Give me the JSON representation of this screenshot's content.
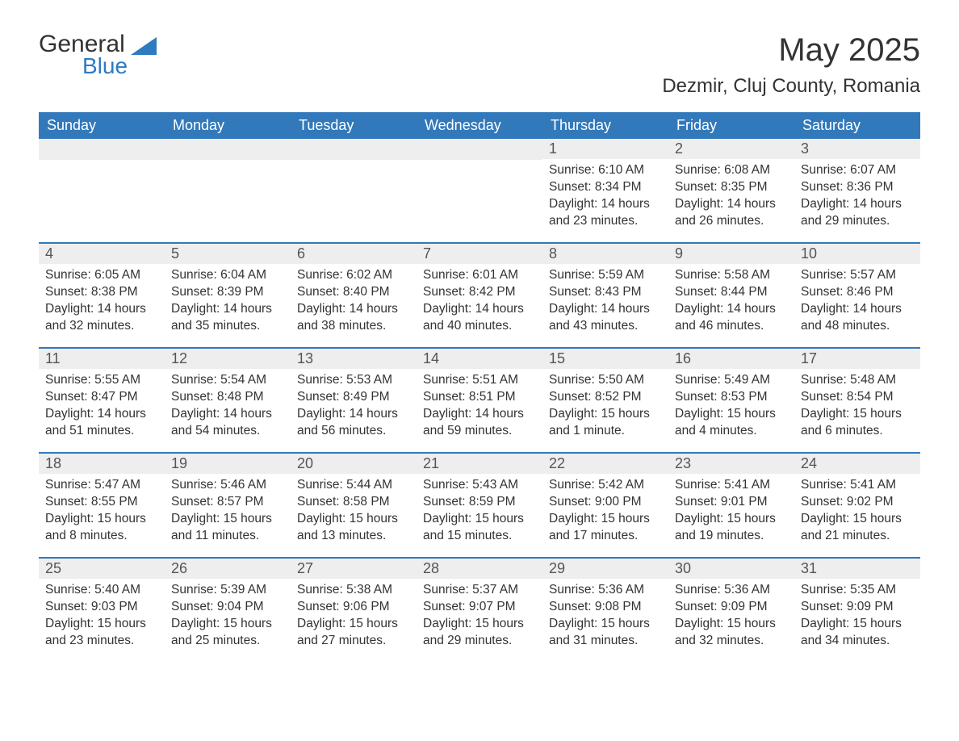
{
  "logo": {
    "word1": "General",
    "word2": "Blue"
  },
  "title": "May 2025",
  "location": "Dezmir, Cluj County, Romania",
  "colors": {
    "headerBg": "#3279bb",
    "headerText": "#ffffff",
    "dayBarBg": "#eeeeee",
    "weekBorder": "#3279bb",
    "bodyText": "#333333",
    "logoBlue": "#2f7bbf"
  },
  "dayHeaders": [
    "Sunday",
    "Monday",
    "Tuesday",
    "Wednesday",
    "Thursday",
    "Friday",
    "Saturday"
  ],
  "labels": {
    "sunrise": "Sunrise: ",
    "sunset": "Sunset: ",
    "daylight": "Daylight: "
  },
  "weeks": [
    [
      null,
      null,
      null,
      null,
      {
        "n": "1",
        "sunrise": "6:10 AM",
        "sunset": "8:34 PM",
        "daylight": "14 hours and 23 minutes."
      },
      {
        "n": "2",
        "sunrise": "6:08 AM",
        "sunset": "8:35 PM",
        "daylight": "14 hours and 26 minutes."
      },
      {
        "n": "3",
        "sunrise": "6:07 AM",
        "sunset": "8:36 PM",
        "daylight": "14 hours and 29 minutes."
      }
    ],
    [
      {
        "n": "4",
        "sunrise": "6:05 AM",
        "sunset": "8:38 PM",
        "daylight": "14 hours and 32 minutes."
      },
      {
        "n": "5",
        "sunrise": "6:04 AM",
        "sunset": "8:39 PM",
        "daylight": "14 hours and 35 minutes."
      },
      {
        "n": "6",
        "sunrise": "6:02 AM",
        "sunset": "8:40 PM",
        "daylight": "14 hours and 38 minutes."
      },
      {
        "n": "7",
        "sunrise": "6:01 AM",
        "sunset": "8:42 PM",
        "daylight": "14 hours and 40 minutes."
      },
      {
        "n": "8",
        "sunrise": "5:59 AM",
        "sunset": "8:43 PM",
        "daylight": "14 hours and 43 minutes."
      },
      {
        "n": "9",
        "sunrise": "5:58 AM",
        "sunset": "8:44 PM",
        "daylight": "14 hours and 46 minutes."
      },
      {
        "n": "10",
        "sunrise": "5:57 AM",
        "sunset": "8:46 PM",
        "daylight": "14 hours and 48 minutes."
      }
    ],
    [
      {
        "n": "11",
        "sunrise": "5:55 AM",
        "sunset": "8:47 PM",
        "daylight": "14 hours and 51 minutes."
      },
      {
        "n": "12",
        "sunrise": "5:54 AM",
        "sunset": "8:48 PM",
        "daylight": "14 hours and 54 minutes."
      },
      {
        "n": "13",
        "sunrise": "5:53 AM",
        "sunset": "8:49 PM",
        "daylight": "14 hours and 56 minutes."
      },
      {
        "n": "14",
        "sunrise": "5:51 AM",
        "sunset": "8:51 PM",
        "daylight": "14 hours and 59 minutes."
      },
      {
        "n": "15",
        "sunrise": "5:50 AM",
        "sunset": "8:52 PM",
        "daylight": "15 hours and 1 minute."
      },
      {
        "n": "16",
        "sunrise": "5:49 AM",
        "sunset": "8:53 PM",
        "daylight": "15 hours and 4 minutes."
      },
      {
        "n": "17",
        "sunrise": "5:48 AM",
        "sunset": "8:54 PM",
        "daylight": "15 hours and 6 minutes."
      }
    ],
    [
      {
        "n": "18",
        "sunrise": "5:47 AM",
        "sunset": "8:55 PM",
        "daylight": "15 hours and 8 minutes."
      },
      {
        "n": "19",
        "sunrise": "5:46 AM",
        "sunset": "8:57 PM",
        "daylight": "15 hours and 11 minutes."
      },
      {
        "n": "20",
        "sunrise": "5:44 AM",
        "sunset": "8:58 PM",
        "daylight": "15 hours and 13 minutes."
      },
      {
        "n": "21",
        "sunrise": "5:43 AM",
        "sunset": "8:59 PM",
        "daylight": "15 hours and 15 minutes."
      },
      {
        "n": "22",
        "sunrise": "5:42 AM",
        "sunset": "9:00 PM",
        "daylight": "15 hours and 17 minutes."
      },
      {
        "n": "23",
        "sunrise": "5:41 AM",
        "sunset": "9:01 PM",
        "daylight": "15 hours and 19 minutes."
      },
      {
        "n": "24",
        "sunrise": "5:41 AM",
        "sunset": "9:02 PM",
        "daylight": "15 hours and 21 minutes."
      }
    ],
    [
      {
        "n": "25",
        "sunrise": "5:40 AM",
        "sunset": "9:03 PM",
        "daylight": "15 hours and 23 minutes."
      },
      {
        "n": "26",
        "sunrise": "5:39 AM",
        "sunset": "9:04 PM",
        "daylight": "15 hours and 25 minutes."
      },
      {
        "n": "27",
        "sunrise": "5:38 AM",
        "sunset": "9:06 PM",
        "daylight": "15 hours and 27 minutes."
      },
      {
        "n": "28",
        "sunrise": "5:37 AM",
        "sunset": "9:07 PM",
        "daylight": "15 hours and 29 minutes."
      },
      {
        "n": "29",
        "sunrise": "5:36 AM",
        "sunset": "9:08 PM",
        "daylight": "15 hours and 31 minutes."
      },
      {
        "n": "30",
        "sunrise": "5:36 AM",
        "sunset": "9:09 PM",
        "daylight": "15 hours and 32 minutes."
      },
      {
        "n": "31",
        "sunrise": "5:35 AM",
        "sunset": "9:09 PM",
        "daylight": "15 hours and 34 minutes."
      }
    ]
  ]
}
